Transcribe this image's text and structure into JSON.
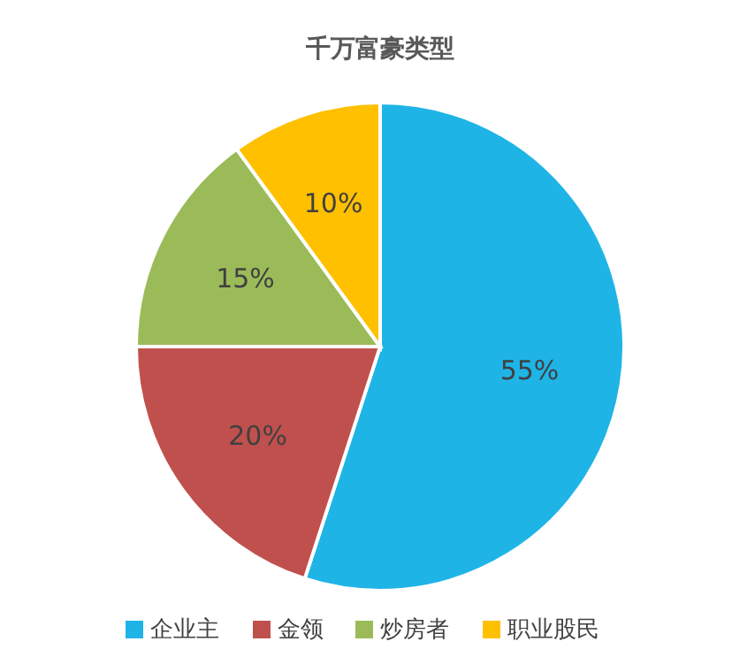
{
  "chart_data": {
    "type": "pie",
    "title": "千万富豪类型",
    "categories": [
      "企业主",
      "金领",
      "炒房者",
      "职业股民"
    ],
    "values": [
      55,
      20,
      15,
      10
    ],
    "value_labels": [
      "55%",
      "20%",
      "15%",
      "10%"
    ],
    "colors": [
      "#1fb4e6",
      "#c0504d",
      "#9bbb59",
      "#ffc000"
    ],
    "legend": "bottom"
  }
}
